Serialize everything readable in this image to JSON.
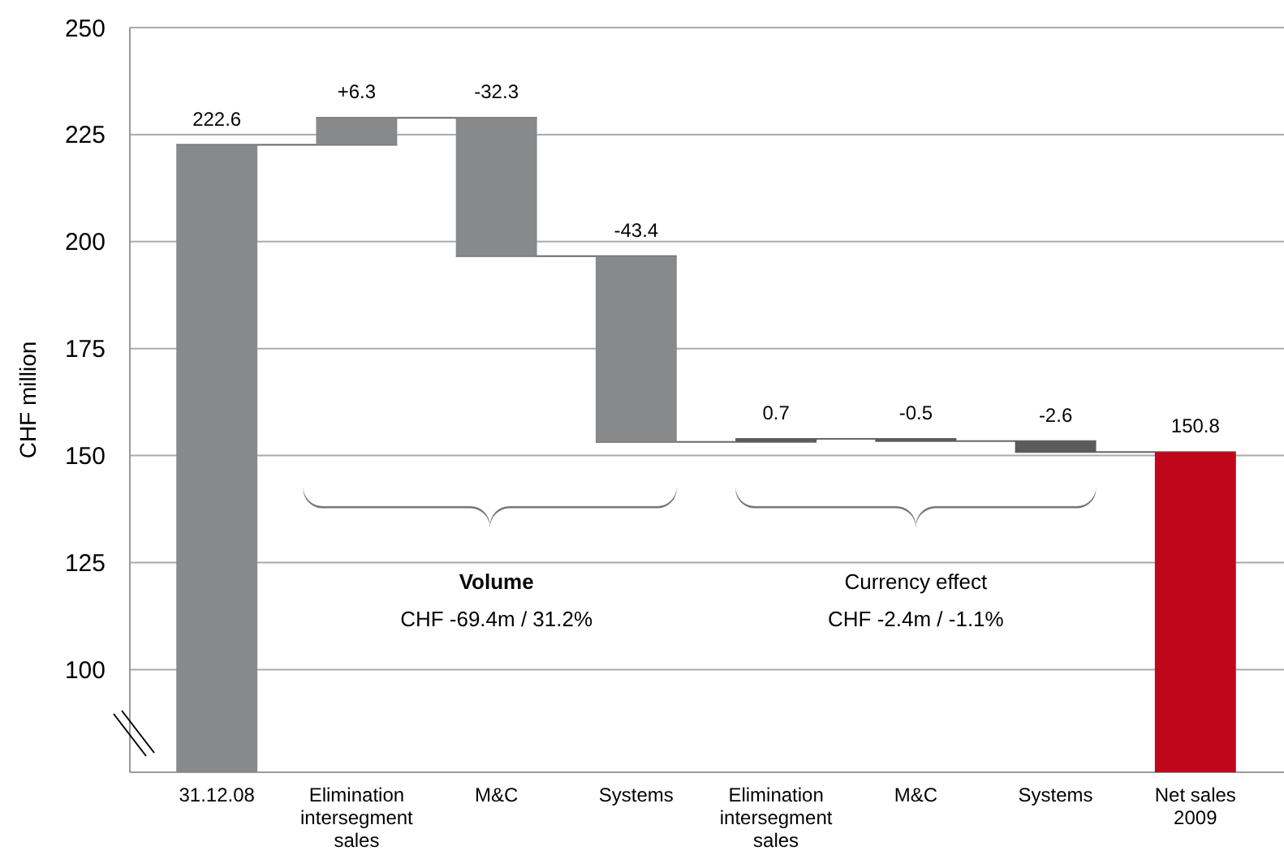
{
  "chart_data": {
    "type": "bar",
    "ylabel": "CHF million",
    "categories": [
      "31.12.08",
      "Elimination intersegment sales",
      "M&C",
      "Systems",
      "Elimination intersegment sales",
      "M&C",
      "Systems",
      "Net sales 2009"
    ],
    "base": [
      76,
      222.6,
      228.9,
      196.6,
      153.2,
      153.9,
      153.4,
      76
    ],
    "values": [
      146.6,
      6.3,
      -32.3,
      -43.4,
      0.7,
      -0.5,
      -2.6,
      74.8
    ],
    "value_labels": [
      "222.6",
      "+6.3",
      "-32.3",
      "-43.4",
      "0.7",
      "-0.5",
      "-2.6",
      "150.8"
    ],
    "colors": [
      "#88898b",
      "#88898b",
      "#88898b",
      "#88898b",
      "#5a5b5d",
      "#5a5b5d",
      "#5a5b5d",
      "#c0061a"
    ],
    "ylim": [
      76,
      250
    ],
    "yticks": [
      100,
      125,
      150,
      175,
      200,
      225,
      250
    ],
    "grid": "y",
    "annotations": [
      "Volume",
      "CHF -69.4m / 31.2%",
      "Currency effect",
      "CHF -2.4m / -1.1%"
    ]
  }
}
